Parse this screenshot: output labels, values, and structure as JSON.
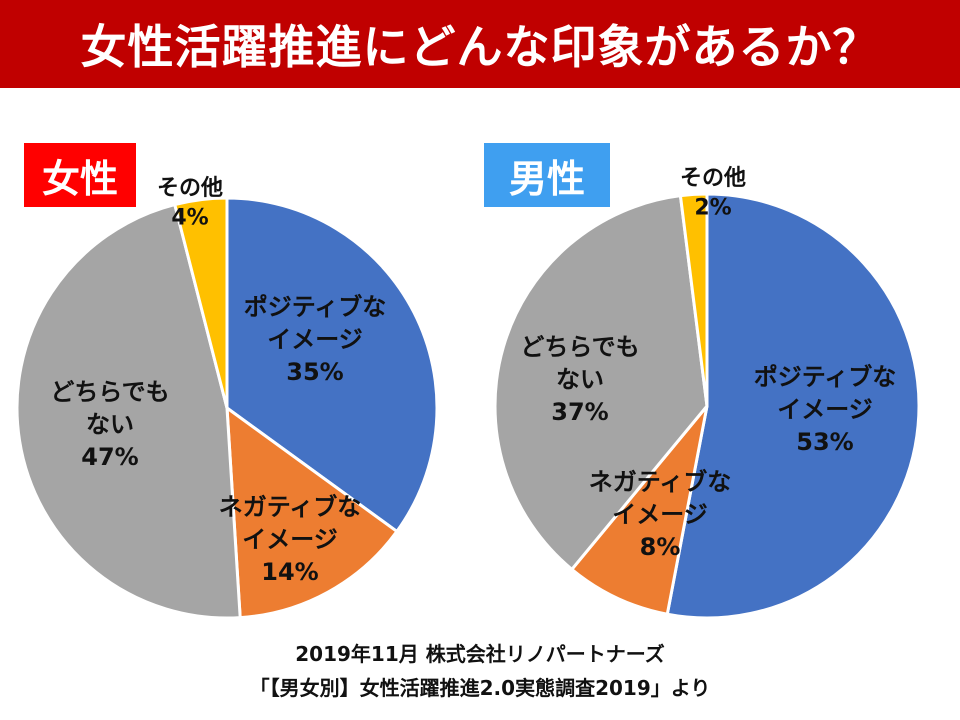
{
  "title": "女性活躍推進にどんな印象があるか？",
  "colors": {
    "title_bg": "#c00000",
    "female_badge": "#ff0000",
    "male_badge": "#3f9ff0",
    "positive": "#4472c4",
    "negative": "#ed7d31",
    "neutral": "#a5a5a5",
    "other": "#ffc000"
  },
  "chart_data": [
    {
      "type": "pie",
      "badge": "女性",
      "slices": [
        {
          "label": [
            "ポジティブな",
            "イメージ",
            "35%"
          ],
          "value": 35,
          "color_key": "positive"
        },
        {
          "label": [
            "ネガティブな",
            "イメージ",
            "14%"
          ],
          "value": 14,
          "color_key": "negative"
        },
        {
          "label": [
            "どちらでも",
            "ない",
            "47%"
          ],
          "value": 47,
          "color_key": "neutral"
        },
        {
          "label": [
            "その他",
            "4%"
          ],
          "value": 4,
          "color_key": "other"
        }
      ]
    },
    {
      "type": "pie",
      "badge": "男性",
      "slices": [
        {
          "label": [
            "ポジティブな",
            "イメージ",
            "53%"
          ],
          "value": 53,
          "color_key": "positive"
        },
        {
          "label": [
            "ネガティブな",
            "イメージ",
            "8%"
          ],
          "value": 8,
          "color_key": "negative"
        },
        {
          "label": [
            "どちらでも",
            "ない",
            "37%"
          ],
          "value": 37,
          "color_key": "neutral"
        },
        {
          "label": [
            "その他",
            "2%"
          ],
          "value": 2,
          "color_key": "other"
        }
      ]
    }
  ],
  "source": {
    "line1": "2019年11月  株式会社リノパートナーズ",
    "line2": "「【男女別】女性活躍推進2.0実態調査2019」より"
  }
}
